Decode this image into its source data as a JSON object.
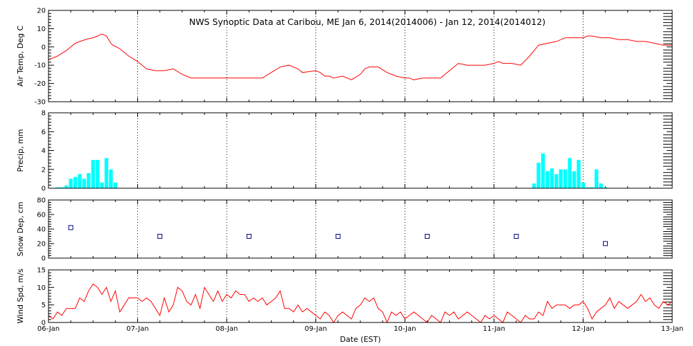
{
  "title": "NWS Synoptic Data at Caribou, ME   Jan  6, 2014(2014006) - Jan 12, 2014(2014012)",
  "xlabel": "Date (EST)",
  "chart_data": [
    {
      "type": "line",
      "ylabel": "Air Temp, Deg C",
      "xlim": [
        0,
        7
      ],
      "ylim": [
        -30,
        20
      ],
      "yticks": [
        -30,
        -20,
        -10,
        0,
        10,
        20
      ],
      "color": "#ff0000",
      "x": [
        0,
        0.1,
        0.2,
        0.3,
        0.38,
        0.45,
        0.5,
        0.55,
        0.6,
        0.65,
        0.7,
        0.72,
        0.8,
        0.9,
        1.0,
        1.1,
        1.2,
        1.3,
        1.4,
        1.5,
        1.6,
        1.7,
        1.8,
        1.9,
        2.0,
        2.1,
        2.2,
        2.3,
        2.35,
        2.4,
        2.5,
        2.6,
        2.7,
        2.8,
        2.85,
        3.0,
        3.05,
        3.1,
        3.15,
        3.2,
        3.3,
        3.4,
        3.5,
        3.55,
        3.6,
        3.7,
        3.8,
        3.9,
        4.0,
        4.05,
        4.1,
        4.2,
        4.3,
        4.4,
        4.5,
        4.6,
        4.7,
        4.8,
        4.9,
        5.0,
        5.05,
        5.1,
        5.2,
        5.3,
        5.4,
        5.5,
        5.6,
        5.7,
        5.8,
        5.9,
        6.0,
        6.05,
        6.1,
        6.2,
        6.3,
        6.4,
        6.5,
        6.6,
        6.7,
        6.8,
        6.9,
        7.0
      ],
      "y": [
        -7,
        -5,
        -2,
        2,
        3.5,
        4.5,
        5,
        6,
        7,
        6,
        2,
        1,
        -1,
        -5,
        -8,
        -12,
        -13,
        -13,
        -12,
        -15,
        -17,
        -17,
        -17,
        -17,
        -17,
        -17,
        -17,
        -17,
        -17,
        -17,
        -14,
        -11,
        -10,
        -12,
        -14,
        -13,
        -14,
        -16,
        -16,
        -17,
        -16,
        -18,
        -15,
        -12,
        -11,
        -11,
        -14,
        -16,
        -17,
        -17,
        -18,
        -17,
        -17,
        -17,
        -13,
        -9,
        -10,
        -10,
        -10,
        -9,
        -8,
        -9,
        -9,
        -10,
        -5,
        1,
        2,
        3,
        5,
        5,
        5,
        6,
        6,
        5,
        5,
        4,
        4,
        3,
        3,
        2,
        1,
        1
      ]
    },
    {
      "type": "bar",
      "ylabel": "Precip, mm",
      "xlim": [
        0,
        7
      ],
      "ylim": [
        0,
        8
      ],
      "yticks": [
        0,
        2,
        4,
        6,
        8
      ],
      "color": "#00ffff",
      "bar_width": 0.042,
      "x": [
        0.1,
        0.15,
        0.2,
        0.25,
        0.3,
        0.35,
        0.4,
        0.45,
        0.5,
        0.55,
        0.6,
        0.65,
        0.7,
        0.75,
        5.45,
        5.5,
        5.55,
        5.6,
        5.65,
        5.7,
        5.75,
        5.8,
        5.85,
        5.9,
        5.95,
        6.0,
        6.05,
        6.1,
        6.15,
        6.2,
        6.25
      ],
      "values": [
        0.1,
        0.1,
        0.3,
        1.0,
        1.2,
        1.5,
        1.0,
        1.6,
        3.0,
        3.0,
        0.6,
        3.2,
        2.0,
        0.6,
        0.5,
        2.7,
        3.7,
        1.8,
        2.1,
        1.5,
        2.0,
        2.0,
        3.2,
        1.8,
        3.0,
        0.6,
        0.1,
        0.1,
        2.0,
        0.5,
        0.1
      ]
    },
    {
      "type": "scatter",
      "ylabel": "Snow Dep, cm",
      "xlim": [
        0,
        7
      ],
      "ylim": [
        0,
        80
      ],
      "yticks": [
        0,
        20,
        40,
        60,
        80
      ],
      "color": "#000080",
      "x": [
        0.25,
        1.25,
        2.25,
        3.25,
        4.25,
        5.25,
        6.25
      ],
      "y": [
        42,
        30,
        30,
        30,
        30,
        30,
        20
      ]
    },
    {
      "type": "line",
      "ylabel": "Wind Spd, m/s",
      "xlim": [
        0,
        7
      ],
      "ylim": [
        0,
        15
      ],
      "yticks": [
        0,
        5,
        10,
        15
      ],
      "xtick_labels": [
        "06-Jan",
        "07-Jan",
        "08-Jan",
        "09-Jan",
        "10-Jan",
        "11-Jan",
        "12-Jan",
        "13-Jan"
      ],
      "color": "#ff0000",
      "x": [
        0,
        0.05,
        0.1,
        0.15,
        0.2,
        0.25,
        0.3,
        0.35,
        0.4,
        0.45,
        0.5,
        0.55,
        0.6,
        0.65,
        0.7,
        0.75,
        0.8,
        0.85,
        0.9,
        0.95,
        1.0,
        1.05,
        1.1,
        1.15,
        1.2,
        1.25,
        1.3,
        1.35,
        1.4,
        1.45,
        1.5,
        1.55,
        1.6,
        1.65,
        1.7,
        1.75,
        1.8,
        1.85,
        1.9,
        1.95,
        2.0,
        2.05,
        2.1,
        2.15,
        2.2,
        2.25,
        2.3,
        2.35,
        2.4,
        2.45,
        2.5,
        2.55,
        2.6,
        2.65,
        2.7,
        2.75,
        2.8,
        2.85,
        2.9,
        2.95,
        3.0,
        3.05,
        3.1,
        3.15,
        3.2,
        3.25,
        3.3,
        3.35,
        3.4,
        3.45,
        3.5,
        3.55,
        3.6,
        3.65,
        3.7,
        3.75,
        3.8,
        3.85,
        3.9,
        3.95,
        4.0,
        4.05,
        4.1,
        4.15,
        4.2,
        4.25,
        4.3,
        4.35,
        4.4,
        4.45,
        4.5,
        4.55,
        4.6,
        4.65,
        4.7,
        4.75,
        4.8,
        4.85,
        4.9,
        4.95,
        5.0,
        5.05,
        5.1,
        5.15,
        5.2,
        5.25,
        5.3,
        5.35,
        5.4,
        5.45,
        5.5,
        5.55,
        5.6,
        5.65,
        5.7,
        5.75,
        5.8,
        5.85,
        5.9,
        5.95,
        6.0,
        6.05,
        6.1,
        6.15,
        6.2,
        6.25,
        6.3,
        6.35,
        6.4,
        6.45,
        6.5,
        6.55,
        6.6,
        6.65,
        6.7,
        6.75,
        6.8,
        6.85,
        6.9,
        6.95,
        7.0
      ],
      "y": [
        2,
        1,
        3,
        2,
        4,
        4,
        4,
        7,
        6,
        9,
        11,
        10,
        8,
        10,
        6,
        9,
        3,
        5,
        7,
        7,
        7,
        6,
        7,
        6,
        4,
        2,
        7,
        3,
        5,
        10,
        9,
        6,
        5,
        8,
        4,
        10,
        8,
        6,
        9,
        6,
        8,
        7,
        9,
        8,
        8,
        6,
        7,
        6,
        7,
        5,
        6,
        7,
        9,
        4,
        4,
        3,
        5,
        3,
        4,
        3,
        2,
        1,
        3,
        2,
        0,
        2,
        3,
        2,
        1,
        4,
        5,
        7,
        6,
        7,
        4,
        3,
        0,
        3,
        2,
        3,
        1,
        2,
        3,
        2,
        1,
        0,
        2,
        1,
        0,
        3,
        2,
        3,
        1,
        2,
        3,
        2,
        1,
        0,
        2,
        1,
        2,
        1,
        0,
        3,
        2,
        1,
        0,
        2,
        1,
        1,
        3,
        2,
        6,
        4,
        5,
        5,
        5,
        4,
        5,
        5,
        6,
        4,
        1,
        3,
        4,
        5,
        7,
        4,
        6,
        5,
        4,
        5,
        6,
        8,
        6,
        7,
        5,
        4,
        6,
        5,
        6
      ]
    }
  ]
}
